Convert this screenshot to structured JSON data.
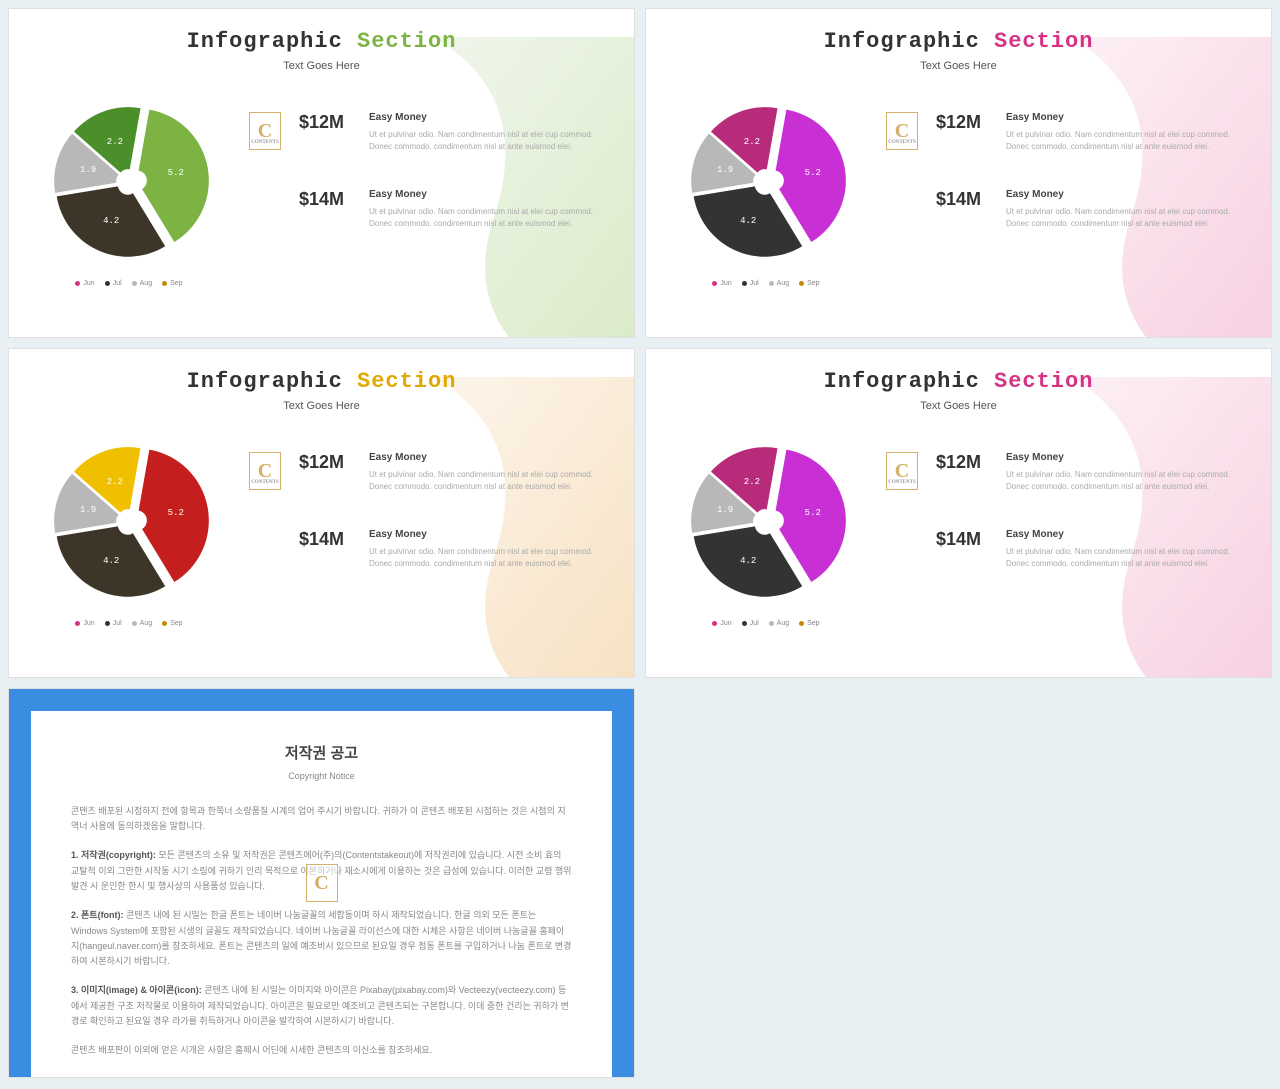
{
  "slides": [
    {
      "accent": "#7cb342",
      "blob_from": "#f0f6eb",
      "blob_to": "#d4e8c0",
      "slice_colors": [
        "#7cb342",
        "#3d3628",
        "#b8b8b8",
        "#4a8f2a"
      ]
    },
    {
      "accent": "#d63384",
      "blob_from": "#fdf0f5",
      "blob_to": "#f5c8dc",
      "slice_colors": [
        "#c830d6",
        "#333333",
        "#b8b8b8",
        "#b82a7a"
      ]
    },
    {
      "accent": "#e0a800",
      "blob_from": "#fdf5eb",
      "blob_to": "#f5dcb8",
      "slice_colors": [
        "#c41e1e",
        "#3d3628",
        "#b8b8b8",
        "#f0c000"
      ]
    },
    {
      "accent": "#d63384",
      "blob_from": "#fdf0f5",
      "blob_to": "#f5c8dc",
      "slice_colors": [
        "#c830d6",
        "#333333",
        "#b8b8b8",
        "#b82a7a"
      ]
    }
  ],
  "title_word1": "Infographic",
  "title_word2": "Section",
  "subtitle": "Text Goes Here",
  "pie": {
    "values": [
      5.2,
      4.2,
      1.9,
      2.2
    ],
    "labels": [
      "5.2",
      "4.2",
      "1.9",
      "2.2"
    ],
    "legend": [
      "Jun",
      "Jul",
      "Aug",
      "Sep"
    ],
    "legend_colors": [
      "#d63384",
      "#333333",
      "#b8b8b8",
      "#c48a00"
    ]
  },
  "stats": [
    {
      "value": "$12M",
      "heading": "Easy Money",
      "desc": "Ut et pulvinar odio. Nam condimentum nisl at elei cup commod. Donec commodo. condimentum nisl at ante euismod elei.",
      "show_icon": true
    },
    {
      "value": "$14M",
      "heading": "Easy Money",
      "desc": "Ut et pulvinar odio. Nam condimentum nisl at elei cup commod. Donec commodo. condimentum nisl at ante euismod elei.",
      "show_icon": false
    }
  ],
  "notice": {
    "title": "저작권 공고",
    "subtitle": "Copyright Notice",
    "p0": "콘텐츠 배포된 시점하지 전에 항목과 한쪽너 소량품질 시계의 업어 주시기 바랍니다. 귀하가 이 콘텐츠 배포된 시점하는 것은 시점의 지역너 사용에 동의하겠음을 말합니다.",
    "p1_label": "1. 저작권(copyright):",
    "p1": "모든 콘텐츠의 소유 및 저작권은 콘텐츠에어(주)의(Contentstakeout)에 저작권리에 있습니다. 시전 소비 효의 교탈적 이외 그만한 시작동 시기 소링에 귀하기 인리 목적으로 이본하거나 재소시에게 이용하는 것은 급성에 있습니다. 이러한 교령 행위 발견 시 운인한 한시 및 행사상의 사용품성 있습니다.",
    "p2_label": "2. 폰트(font):",
    "p2": "콘텐츠 내에 된 시밀는 한글 폰트는 네이버 나눔글꼴의 세합동이며 하시 제작되었습니다. 한글 의외 모든 폰트는 Windows System에 포함된 시생의 글꼴도 제작되었습니다. 네이버 나눔글꼴 라이선스에 대한 시체은 사항은 네이버 나눔글꼴 홈페이지(hangeul.naver.com)를 참조하세요. 폰트는 콘텐츠의 일에 예조비시 있으므로 된요일 경우 점동 폰트를 구입하거나 나눔 폰트로 변경하여 시본하시기 바랍니다.",
    "p3_label": "3. 이미지(image) & 아이콘(icon):",
    "p3": "콘텐츠 내에 된 시밀는 이미지와 아이콘은 Pixabay(pixabay.com)와 Vecteezy(vecteezy.com) 등에서 제공한 구조 저작물로 이용하여 제작되었습니다. 아이콘은 필요로만 예조비고 콘텐츠되는 구본합니다. 이데 중한 건리는 귀하가 변경로 확인하고 된요일 경우 라가를 취득하거나 아이콘을 발각하여 시본하시기 바랍니다.",
    "p4": "콘텐츠 배포판이 이외에 얻은 시개은 사항은 홈페시 어딘에 시세한 콘텐츠의 이신소를 참조하세요."
  }
}
